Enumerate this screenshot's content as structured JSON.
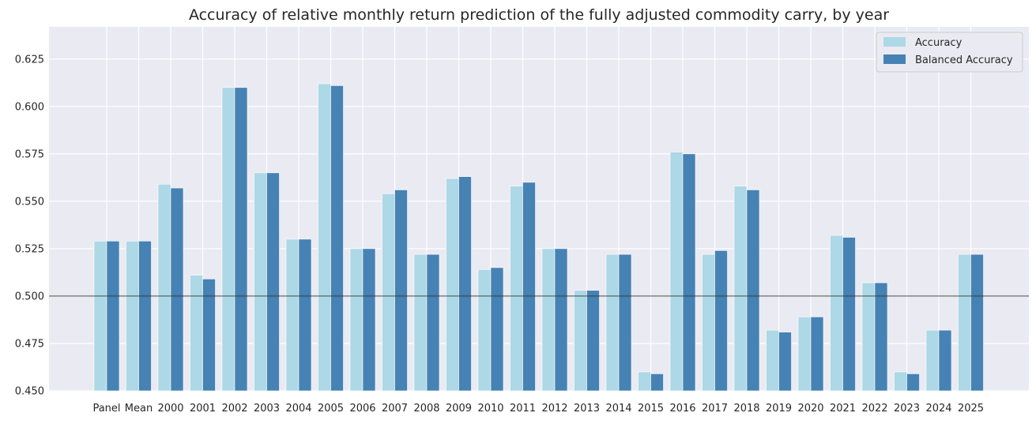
{
  "chart_data": {
    "type": "bar",
    "title": "Accuracy of relative monthly return prediction of the fully adjusted commodity carry, by year",
    "xlabel": "",
    "ylabel": "",
    "ylim": [
      0.45,
      0.642
    ],
    "yticks": [
      "0.450",
      "0.475",
      "0.500",
      "0.525",
      "0.550",
      "0.575",
      "0.600",
      "0.625"
    ],
    "reference_line": 0.5,
    "grid": true,
    "legend_position": "top-right",
    "categories": [
      "Panel",
      "Mean",
      "2000",
      "2001",
      "2002",
      "2003",
      "2004",
      "2005",
      "2006",
      "2007",
      "2008",
      "2009",
      "2010",
      "2011",
      "2012",
      "2013",
      "2014",
      "2015",
      "2016",
      "2017",
      "2018",
      "2019",
      "2020",
      "2021",
      "2022",
      "2023",
      "2024",
      "2025"
    ],
    "series": [
      {
        "name": "Accuracy",
        "color": "#add8e6",
        "values": [
          0.529,
          0.529,
          0.559,
          0.511,
          0.61,
          0.565,
          0.53,
          0.612,
          0.525,
          0.554,
          0.522,
          0.562,
          0.514,
          0.558,
          0.525,
          0.503,
          0.522,
          0.46,
          0.576,
          0.522,
          0.558,
          0.482,
          0.489,
          0.532,
          0.507,
          0.46,
          0.482,
          0.522
        ]
      },
      {
        "name": "Balanced Accuracy",
        "color": "#4682b4",
        "values": [
          0.529,
          0.529,
          0.557,
          0.509,
          0.61,
          0.565,
          0.53,
          0.611,
          0.525,
          0.556,
          0.522,
          0.563,
          0.515,
          0.56,
          0.525,
          0.503,
          0.522,
          0.459,
          0.575,
          0.524,
          0.556,
          0.481,
          0.489,
          0.531,
          0.507,
          0.459,
          0.482,
          0.522
        ]
      }
    ]
  }
}
